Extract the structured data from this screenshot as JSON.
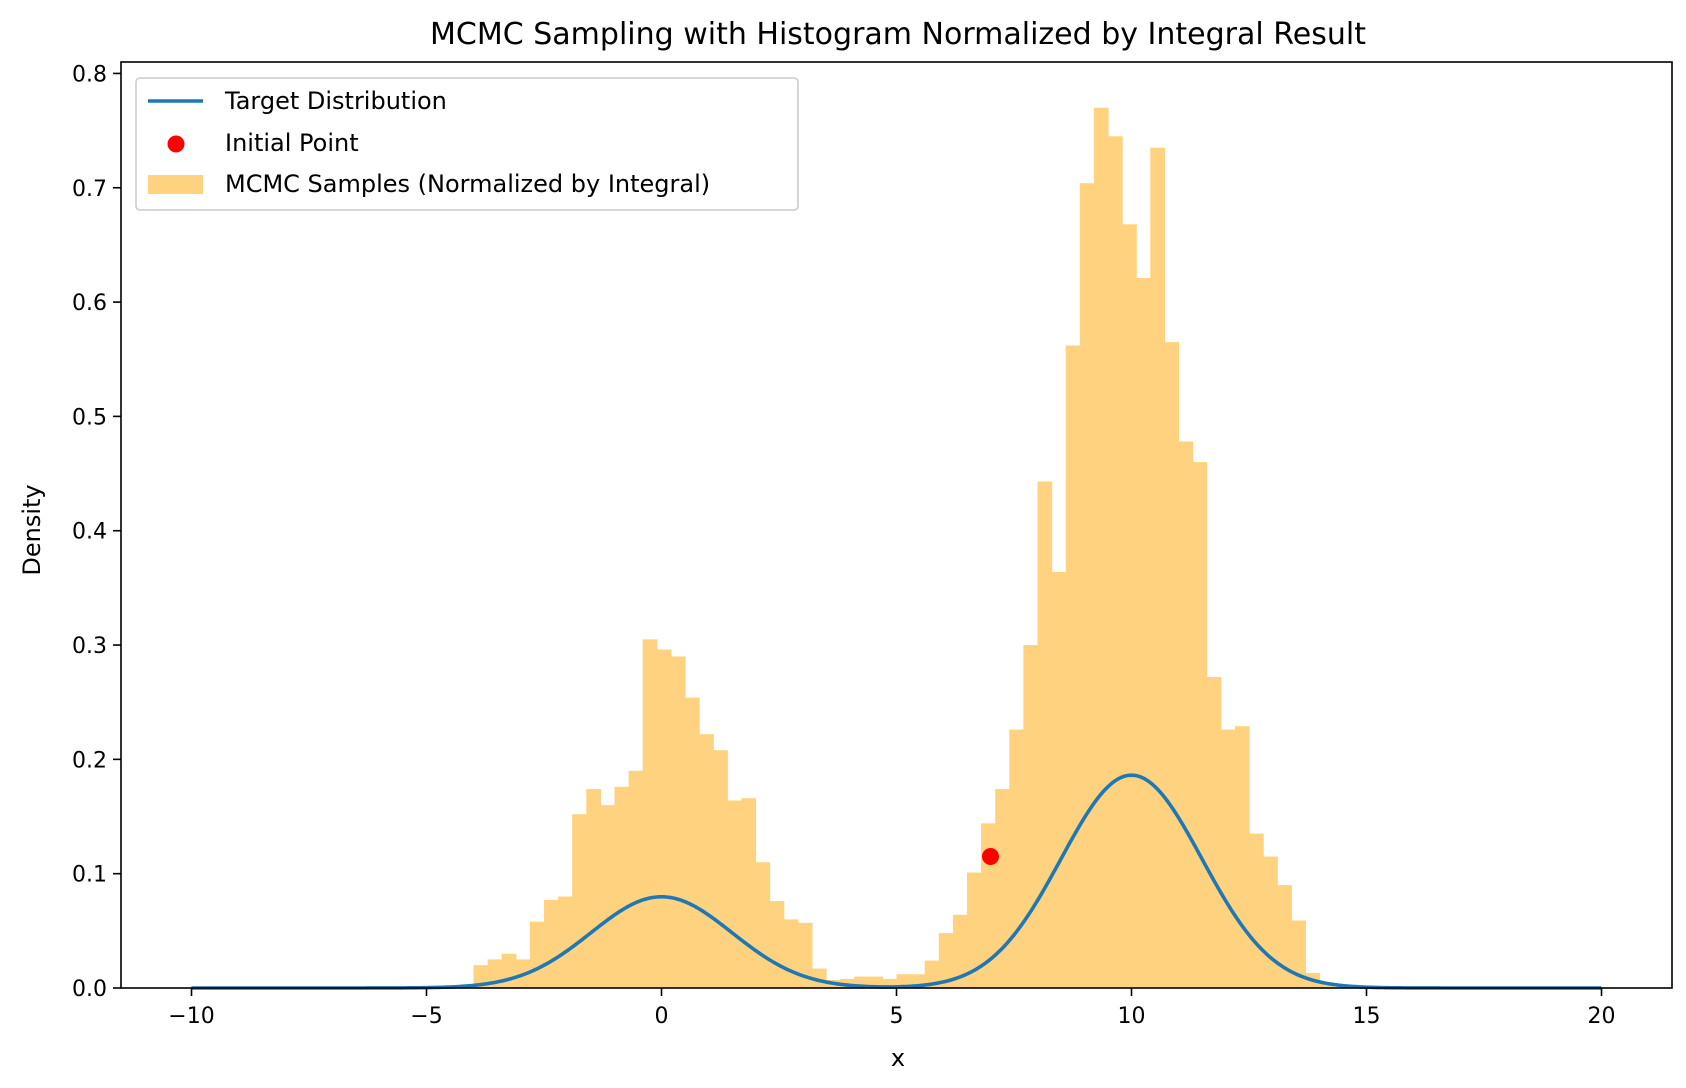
{
  "chart_data": {
    "type": "histogram",
    "title": "MCMC Sampling with Histogram Normalized by Integral Result",
    "xlabel": "x",
    "ylabel": "Density",
    "xlim": [
      -11.5,
      21.5
    ],
    "ylim": [
      0,
      0.81
    ],
    "xticks": [
      -10,
      -5,
      0,
      5,
      10,
      15,
      20
    ],
    "xtick_labels": [
      "−10",
      "−5",
      "0",
      "5",
      "10",
      "15",
      "20"
    ],
    "yticks": [
      0.0,
      0.1,
      0.2,
      0.3,
      0.4,
      0.5,
      0.6,
      0.7,
      0.8
    ],
    "ytick_labels": [
      "0.0",
      "0.1",
      "0.2",
      "0.3",
      "0.4",
      "0.5",
      "0.6",
      "0.7",
      "0.8"
    ],
    "grid": false,
    "legend_position": "upper-left",
    "legend": [
      {
        "label": "Target Distribution",
        "kind": "line",
        "color": "#1f77b4"
      },
      {
        "label": "Initial Point",
        "kind": "marker",
        "color": "#ff0000"
      },
      {
        "label": "MCMC Samples (Normalized by Integral)",
        "kind": "patch",
        "color": "#ffd27f"
      }
    ],
    "target_distribution": {
      "name": "Target Distribution",
      "color": "#1f77b4",
      "x_range": [
        -10,
        20
      ],
      "components": [
        {
          "weight": 0.3,
          "mean": 0,
          "std": 1.5
        },
        {
          "weight": 0.7,
          "mean": 10,
          "std": 1.5
        }
      ],
      "peaks": [
        {
          "x": 0,
          "y": 0.3
        },
        {
          "x": 10,
          "y": 0.7
        }
      ]
    },
    "initial_point": {
      "name": "Initial Point",
      "x": 7.0,
      "y": 0.115,
      "color": "#ff0000"
    },
    "histogram": {
      "name": "MCMC Samples (Normalized by Integral)",
      "color": "#ffd27f",
      "bin_start": -4.0,
      "bin_width": 0.3,
      "densities": [
        0.02,
        0.025,
        0.03,
        0.025,
        0.058,
        0.077,
        0.08,
        0.152,
        0.174,
        0.16,
        0.176,
        0.19,
        0.305,
        0.296,
        0.29,
        0.254,
        0.222,
        0.208,
        0.164,
        0.166,
        0.11,
        0.076,
        0.06,
        0.057,
        0.017,
        0.007,
        0.008,
        0.01,
        0.01,
        0.008,
        0.012,
        0.012,
        0.024,
        0.048,
        0.064,
        0.101,
        0.144,
        0.174,
        0.226,
        0.3,
        0.443,
        0.364,
        0.562,
        0.704,
        0.77,
        0.745,
        0.668,
        0.621,
        0.735,
        0.565,
        0.478,
        0.46,
        0.272,
        0.226,
        0.229,
        0.135,
        0.115,
        0.09,
        0.059,
        0.013,
        0.005
      ]
    }
  }
}
